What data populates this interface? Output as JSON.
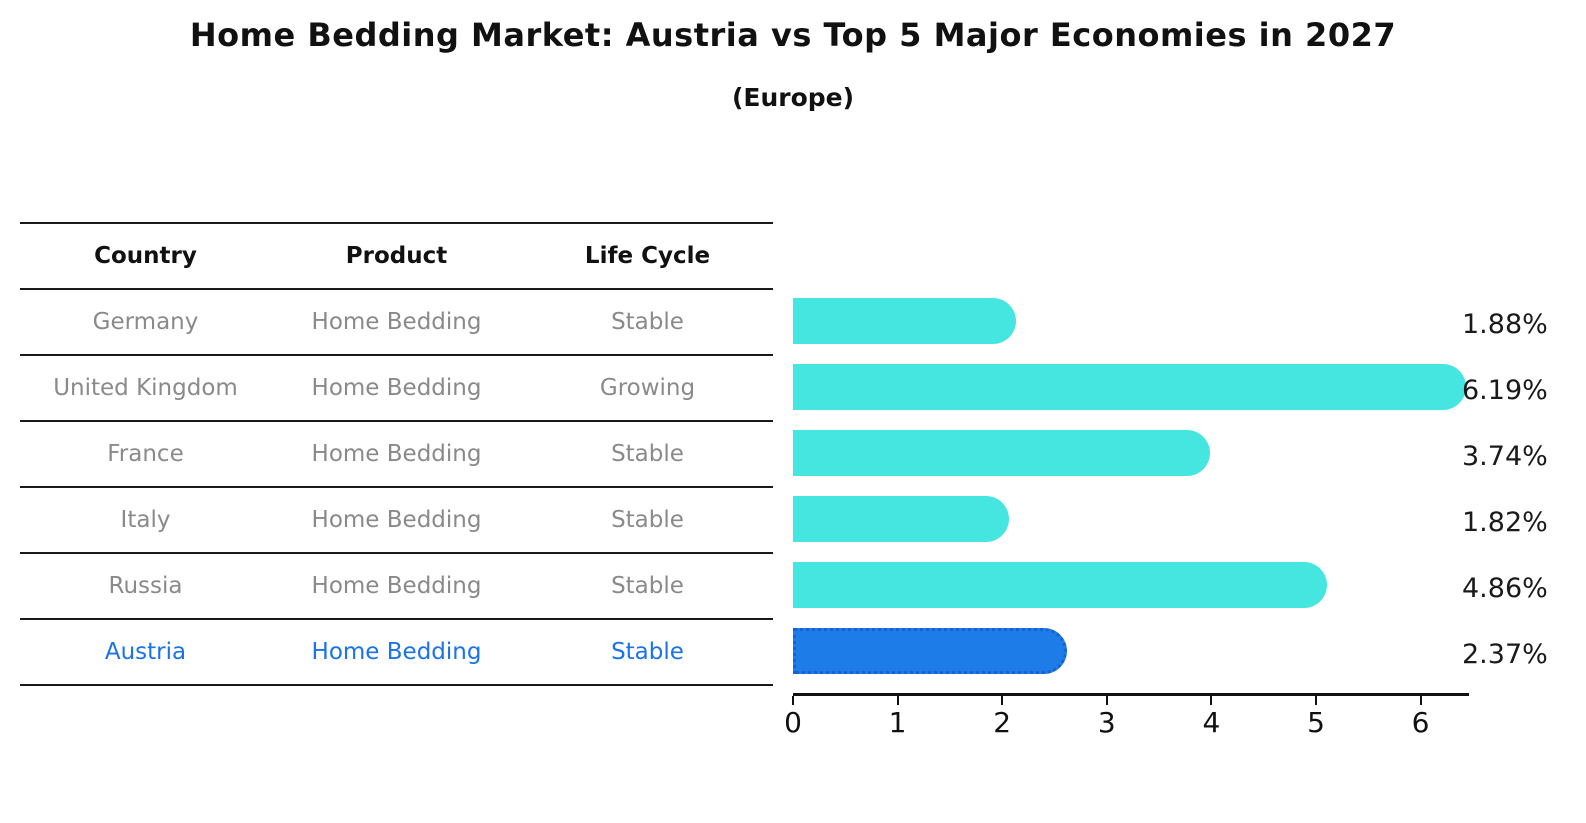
{
  "title": "Home Bedding Market: Austria vs Top 5 Major Economies in 2027",
  "subtitle": "(Europe)",
  "table": {
    "headers": [
      "Country",
      "Product",
      "Life Cycle"
    ],
    "rows": [
      {
        "country": "Germany",
        "product": "Home Bedding",
        "life_cycle": "Stable",
        "highlight": false
      },
      {
        "country": "United Kingdom",
        "product": "Home Bedding",
        "life_cycle": "Growing",
        "highlight": false
      },
      {
        "country": "France",
        "product": "Home Bedding",
        "life_cycle": "Stable",
        "highlight": false
      },
      {
        "country": "Italy",
        "product": "Home Bedding",
        "life_cycle": "Stable",
        "highlight": false
      },
      {
        "country": "Russia",
        "product": "Home Bedding",
        "life_cycle": "Stable",
        "highlight": false
      },
      {
        "country": "Austria",
        "product": "Home Bedding",
        "life_cycle": "Stable",
        "highlight": true
      }
    ]
  },
  "chart_data": {
    "type": "bar",
    "orientation": "horizontal",
    "title": "Home Bedding Market: Austria vs Top 5 Major Economies in 2027 (Europe)",
    "categories": [
      "Germany",
      "United Kingdom",
      "France",
      "Italy",
      "Russia",
      "Austria"
    ],
    "values": [
      1.88,
      6.19,
      3.74,
      1.82,
      4.86,
      2.37
    ],
    "value_labels": [
      "1.88%",
      "6.19%",
      "3.74%",
      "1.82%",
      "4.86%",
      "2.37%"
    ],
    "x_ticks": [
      0,
      1,
      2,
      3,
      4,
      5,
      6
    ],
    "xlim": [
      0,
      6.45
    ],
    "grid": false,
    "legend": "none",
    "highlight_index": 5
  },
  "colors": {
    "bar": "#45E6E0",
    "highlight_bar": "#1E7CE8",
    "highlight_text": "#1a73e8",
    "row_text": "#8a8a8a",
    "header_text": "#111111",
    "axis": "#111111"
  }
}
